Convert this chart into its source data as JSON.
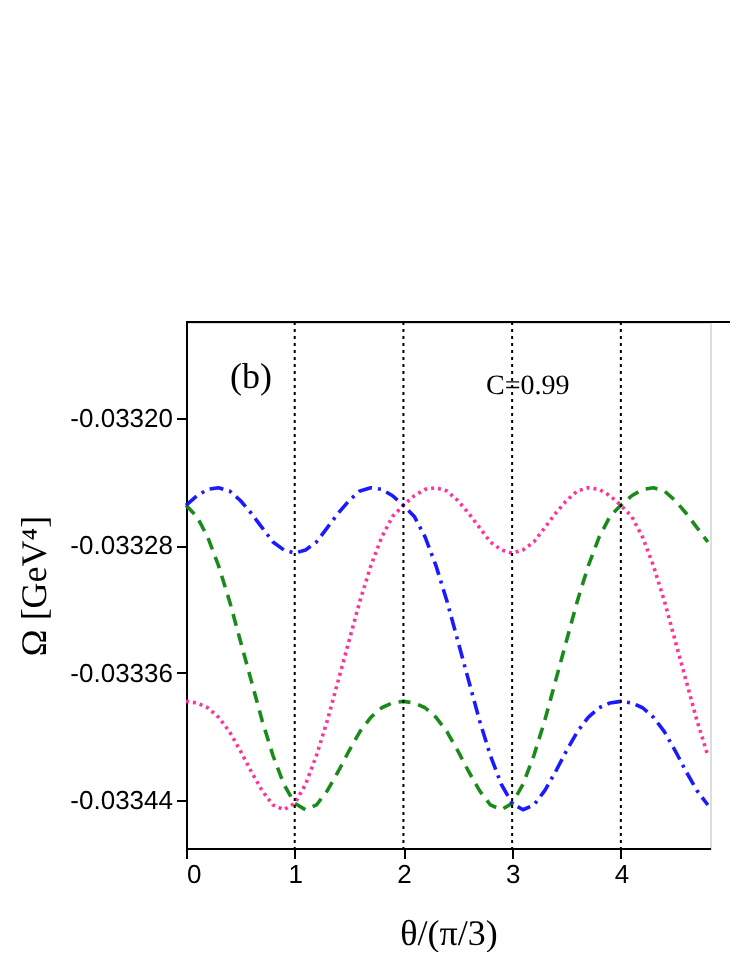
{
  "chart_data": {
    "type": "line",
    "xlabel": "θ/(π/3)",
    "ylabel": "Ω [GeV⁴]",
    "annotations": [
      "(b)",
      "C=0.99"
    ],
    "x": [
      0,
      0.1,
      0.2,
      0.3,
      0.4,
      0.5,
      0.6,
      0.7,
      0.8,
      0.9,
      1,
      1.1,
      1.2,
      1.3,
      1.4,
      1.5,
      1.6,
      1.7,
      1.8,
      1.9,
      2,
      2.1,
      2.2,
      2.3,
      2.4,
      2.5,
      2.6,
      2.7,
      2.8,
      2.9,
      3,
      3.1,
      3.2,
      3.3,
      3.4,
      3.5,
      3.6,
      3.7,
      3.8,
      3.9,
      4,
      4.1,
      4.2,
      4.3,
      4.4,
      4.5,
      4.6,
      4.7,
      4.8
    ],
    "series": [
      {
        "color": "#1a8a1a",
        "line_style": "dashed",
        "values": [
          -0.033255,
          -0.033262,
          -0.033275,
          -0.033293,
          -0.033315,
          -0.03334,
          -0.033365,
          -0.03339,
          -0.033412,
          -0.03343,
          -0.033442,
          -0.033446,
          -0.033443,
          -0.033434,
          -0.033422,
          -0.033409,
          -0.033397,
          -0.033388,
          -0.033382,
          -0.033379,
          -0.033378,
          -0.033379,
          -0.033382,
          -0.033388,
          -0.033397,
          -0.033409,
          -0.033422,
          -0.033434,
          -0.033443,
          -0.033446,
          -0.033442,
          -0.03343,
          -0.033412,
          -0.03339,
          -0.033365,
          -0.03334,
          -0.033315,
          -0.033293,
          -0.033275,
          -0.033262,
          -0.033255,
          -0.033249,
          -0.033245,
          -0.033244,
          -0.033246,
          -0.033252,
          -0.03326,
          -0.033269,
          -0.033278
        ]
      },
      {
        "color": "#ff3399",
        "line_style": "dotted",
        "values": [
          -0.033378,
          -0.033379,
          -0.033382,
          -0.033388,
          -0.033397,
          -0.033409,
          -0.033422,
          -0.033434,
          -0.033443,
          -0.033446,
          -0.033442,
          -0.03343,
          -0.033412,
          -0.03339,
          -0.033365,
          -0.03334,
          -0.033315,
          -0.033293,
          -0.033275,
          -0.033262,
          -0.033255,
          -0.033249,
          -0.033245,
          -0.033244,
          -0.033246,
          -0.033252,
          -0.03326,
          -0.033269,
          -0.033278,
          -0.033283,
          -0.033285,
          -0.033283,
          -0.033278,
          -0.033269,
          -0.03326,
          -0.033252,
          -0.033246,
          -0.033244,
          -0.033245,
          -0.033249,
          -0.033255,
          -0.033262,
          -0.033275,
          -0.033293,
          -0.033315,
          -0.03334,
          -0.033365,
          -0.03339,
          -0.033412
        ]
      },
      {
        "color": "#1a1aff",
        "line_style": "dashdot",
        "values": [
          -0.033255,
          -0.033249,
          -0.033245,
          -0.033244,
          -0.033246,
          -0.033252,
          -0.03326,
          -0.033269,
          -0.033278,
          -0.033283,
          -0.033285,
          -0.033283,
          -0.033278,
          -0.033269,
          -0.03326,
          -0.033252,
          -0.033246,
          -0.033244,
          -0.033245,
          -0.033249,
          -0.033255,
          -0.033262,
          -0.033275,
          -0.033293,
          -0.033315,
          -0.03334,
          -0.033365,
          -0.03339,
          -0.033412,
          -0.03343,
          -0.033442,
          -0.033446,
          -0.033443,
          -0.033434,
          -0.033422,
          -0.033409,
          -0.033397,
          -0.033388,
          -0.033382,
          -0.033379,
          -0.033378,
          -0.033379,
          -0.033382,
          -0.033388,
          -0.033397,
          -0.033409,
          -0.033422,
          -0.033434,
          -0.033443
        ]
      }
    ],
    "ref_lines": [
      {
        "axis": "x",
        "value": 1,
        "color": "#000000",
        "line_style": "dotted"
      },
      {
        "axis": "x",
        "value": 2,
        "color": "#000000",
        "line_style": "dotted"
      },
      {
        "axis": "x",
        "value": 3,
        "color": "#000000",
        "line_style": "dotted"
      },
      {
        "axis": "x",
        "value": 4,
        "color": "#000000",
        "line_style": "dotted"
      }
    ],
    "xlim": [
      0,
      4.82
    ],
    "xticks": [
      0,
      1,
      2,
      3,
      4
    ],
    "ylim": [
      -0.03347,
      -0.03314
    ],
    "yticks": [
      {
        "value": -0.0332,
        "label": "-0.03320"
      },
      {
        "value": -0.03328,
        "label": "-0.03328"
      },
      {
        "value": -0.03336,
        "label": "-0.03336"
      },
      {
        "value": -0.03344,
        "label": "-0.03344"
      }
    ],
    "grid": false
  }
}
